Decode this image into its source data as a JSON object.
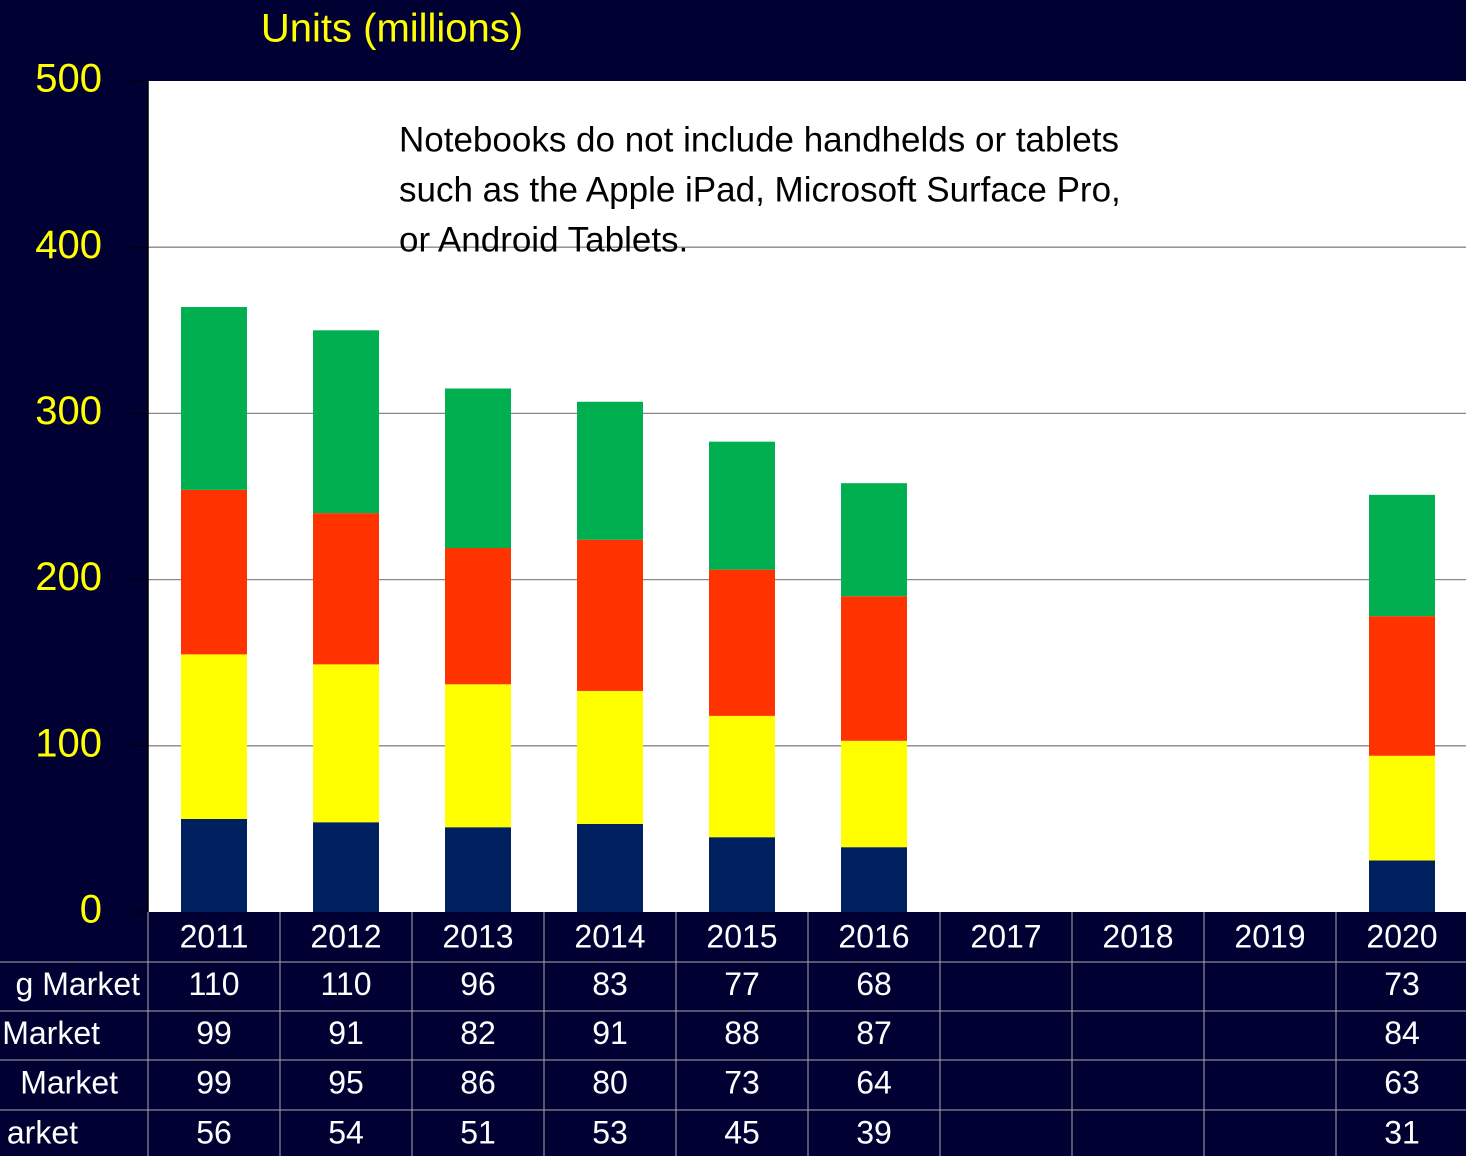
{
  "chart_data": {
    "type": "stacked_bar",
    "title": "Units (millions)",
    "annotation": [
      "Notebooks do not include handhelds or tablets",
      "such as the Apple iPad, Microsoft Surface Pro,",
      "or Android Tablets."
    ],
    "categories": [
      "2011",
      "2012",
      "2013",
      "2014",
      "2015",
      "2016",
      "2017",
      "2018",
      "2019",
      "2020"
    ],
    "series": [
      {
        "name": "g Market",
        "color": "#00b050",
        "values": [
          110,
          110,
          96,
          83,
          77,
          68,
          null,
          null,
          null,
          73
        ]
      },
      {
        "name": "Market",
        "color": "#ff3300",
        "values": [
          99,
          91,
          82,
          91,
          88,
          87,
          null,
          null,
          null,
          84
        ]
      },
      {
        "name": "Market",
        "color": "#ffff00",
        "values": [
          99,
          95,
          86,
          80,
          73,
          64,
          null,
          null,
          null,
          63
        ]
      },
      {
        "name": "arket",
        "color": "#002060",
        "values": [
          56,
          54,
          51,
          53,
          45,
          39,
          null,
          null,
          null,
          31
        ]
      }
    ],
    "ylim": [
      0,
      500
    ],
    "yticks": [
      0,
      100,
      200,
      300,
      400,
      500
    ],
    "grid": true
  }
}
